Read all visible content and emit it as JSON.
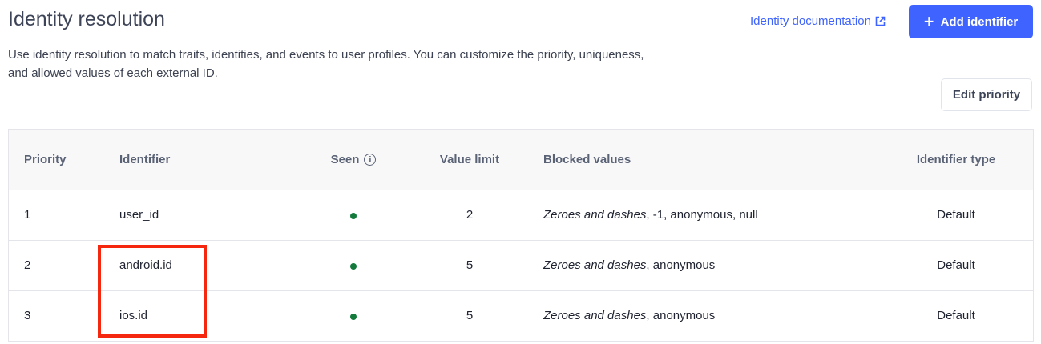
{
  "header": {
    "title": "Identity resolution",
    "description": "Use identity resolution to match traits, identities, and events to user profiles. You can customize the priority, uniqueness, and allowed values of each external ID.",
    "doc_link": "Identity documentation",
    "add_button": "Add identifier",
    "edit_priority": "Edit priority"
  },
  "table": {
    "columns": [
      "Priority",
      "Identifier",
      "Seen",
      "Value limit",
      "Blocked values",
      "Identifier type"
    ],
    "rows": [
      {
        "priority": "1",
        "identifier": "user_id",
        "seen": true,
        "value_limit": "2",
        "blocked_italic": "Zeroes and dashes",
        "blocked_rest": ", -1, anonymous, null",
        "type": "Default"
      },
      {
        "priority": "2",
        "identifier": "android.id",
        "seen": true,
        "value_limit": "5",
        "blocked_italic": "Zeroes and dashes",
        "blocked_rest": ", anonymous",
        "type": "Default"
      },
      {
        "priority": "3",
        "identifier": "ios.id",
        "seen": true,
        "value_limit": "5",
        "blocked_italic": "Zeroes and dashes",
        "blocked_rest": ", anonymous",
        "type": "Default"
      }
    ]
  },
  "colors": {
    "accent": "#3f63ff",
    "seen_dot": "#137a3c",
    "highlight": "#f5280f"
  }
}
